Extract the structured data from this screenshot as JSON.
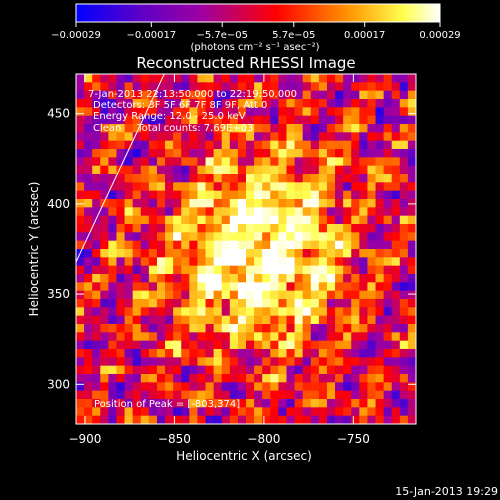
{
  "chart_data": {
    "type": "heatmap",
    "title": "Reconstructed RHESSI Image",
    "xlabel": "Heliocentric X (arcsec)",
    "ylabel": "Heliocentric Y (arcsec)",
    "xlim": [
      -905,
      -715
    ],
    "ylim": [
      278,
      472
    ],
    "xticks": [
      -900,
      -850,
      -800,
      -750
    ],
    "yticks": [
      300,
      350,
      400,
      450
    ],
    "xtick_labels": [
      "−900",
      "−850",
      "−800",
      "−750"
    ],
    "ytick_labels": [
      "300",
      "350",
      "400",
      "450"
    ],
    "colorbar": {
      "unit_label": "(photons cm⁻² s⁻¹ asec⁻²)",
      "ticks": [
        -0.00029,
        -0.00017,
        -5.7e-05,
        5.7e-05,
        0.00017,
        0.00029
      ],
      "tick_labels": [
        "−0.00029",
        "−0.00017",
        "−5.7e−05",
        "5.7e−05",
        "0.00017",
        "0.00029"
      ],
      "colormap": [
        "#0000ff",
        "#5a00c8",
        "#a000a0",
        "#ff0000",
        "#ff9600",
        "#ffff50",
        "#ffffff"
      ]
    },
    "annotations": [
      "7-Jan-2013 22:13:50.000 to 22:19:50.000",
      "Detectors: 3F 5F 6F 7F 8F 9F, Att 0",
      "Energy Range: 12.0 - 25.0 keV",
      "Clean     Total counts: 7.69E+03"
    ],
    "peak_label": "Position of Peak = [-803,374]",
    "peak": [
      -803,
      374
    ],
    "grid": false
  },
  "footer_timestamp": "15-Jan-2013 19:29"
}
